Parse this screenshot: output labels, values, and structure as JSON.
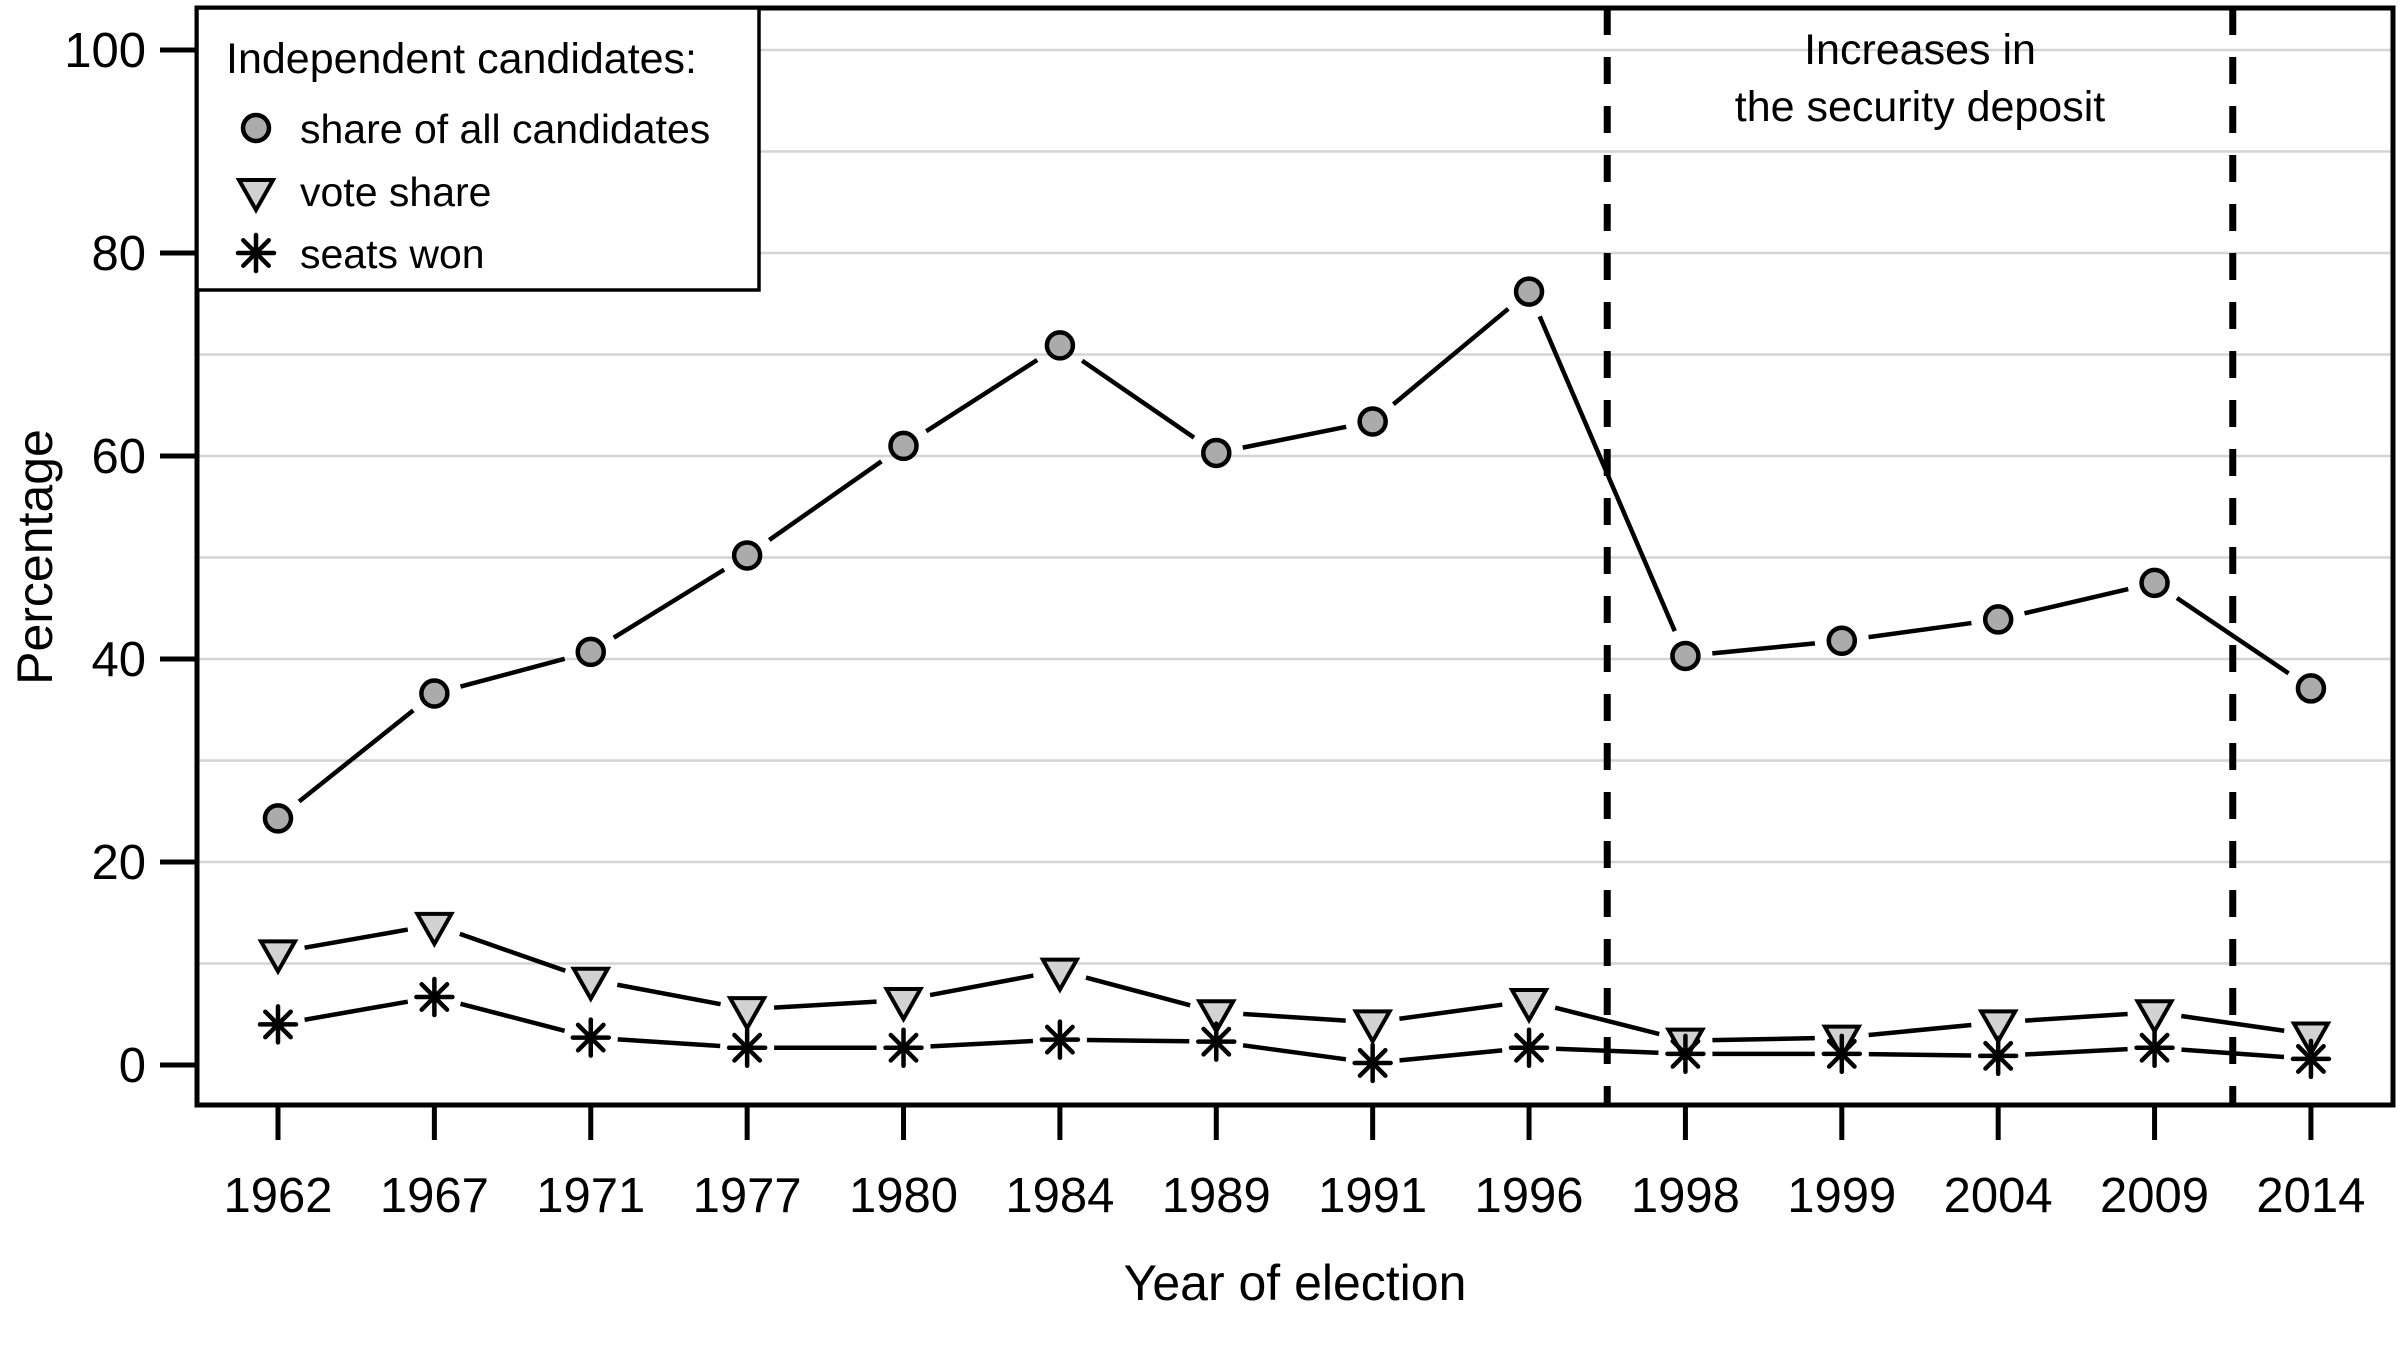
{
  "chart_data": {
    "type": "line",
    "title": "",
    "x_axis": {
      "label": "Year of election",
      "categories": [
        "1962",
        "1967",
        "1971",
        "1977",
        "1980",
        "1984",
        "1989",
        "1991",
        "1996",
        "1998",
        "1999",
        "2004",
        "2009",
        "2014"
      ]
    },
    "y_axis": {
      "label": "Percentage",
      "ticks": [
        0,
        20,
        40,
        60,
        80,
        100
      ],
      "range": [
        -4,
        104
      ],
      "gridline_values": [
        10,
        20,
        30,
        40,
        50,
        60,
        70,
        80,
        90,
        100
      ],
      "grid_on": true
    },
    "legend": {
      "position": "top-left",
      "title": "Independent candidates:",
      "entries": [
        {
          "label": "share of all candidates",
          "marker": "circle"
        },
        {
          "label": "vote share",
          "marker": "triangle-down"
        },
        {
          "label": "seats won",
          "marker": "asterisk"
        }
      ]
    },
    "series": [
      {
        "name": "share of all candidates",
        "marker": "circle",
        "marker_fill": "#ababab",
        "values": [
          24.3,
          36.6,
          40.7,
          50.2,
          61.0,
          70.9,
          60.3,
          63.4,
          76.2,
          40.3,
          41.8,
          43.9,
          47.5,
          37.1
        ]
      },
      {
        "name": "vote share",
        "marker": "triangle-down",
        "marker_fill": "#d2d2d2",
        "values": [
          11.1,
          13.8,
          8.4,
          5.5,
          6.4,
          9.3,
          5.2,
          4.2,
          6.3,
          2.4,
          2.7,
          4.2,
          5.2,
          3.0
        ]
      },
      {
        "name": "seats won",
        "marker": "asterisk",
        "marker_fill": "#000000",
        "values": [
          4.0,
          6.7,
          2.7,
          1.7,
          1.7,
          2.5,
          2.3,
          0.2,
          1.7,
          1.1,
          1.1,
          0.9,
          1.7,
          0.6
        ]
      }
    ],
    "reference_lines": [
      {
        "x_index": 8.5,
        "style": "dashed"
      },
      {
        "x_index": 12.5,
        "style": "dashed"
      }
    ],
    "annotation": {
      "lines": [
        "Increases in",
        "the security deposit"
      ]
    },
    "colors": {
      "line": "#000000",
      "grid": "#d4d4d4",
      "box": "#000000",
      "background": "#ffffff",
      "circle_fill": "#ababab",
      "triangle_fill": "#d2d2d2"
    }
  }
}
